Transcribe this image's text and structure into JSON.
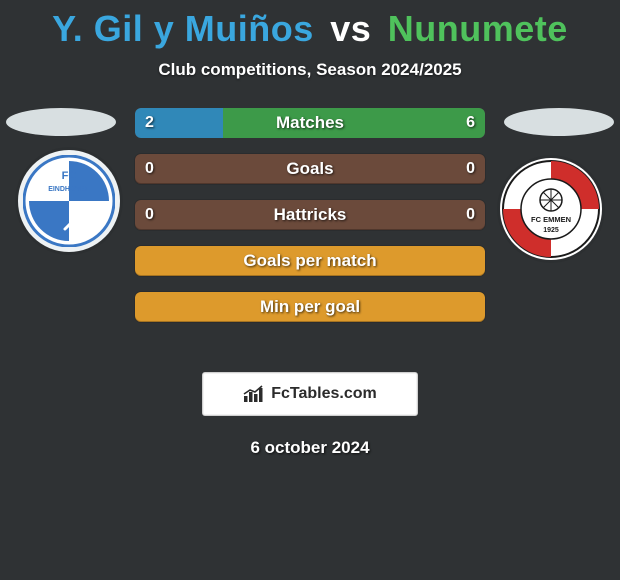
{
  "title": {
    "player1": "Y. Gil y Muiños",
    "sep": "vs",
    "player2": "Nunumete",
    "color1": "#3aa7df",
    "colorSep": "#ffffff",
    "color2": "#4fc25c"
  },
  "subtitle": "Club competitions, Season 2024/2025",
  "ovals": {
    "leftColor": "#d8dfe1",
    "rightColor": "#d8dfe1"
  },
  "bars": [
    {
      "label": "Matches",
      "left": "2",
      "right": "6",
      "lw": 25,
      "rw": 75,
      "colL": "#3088b8",
      "colR": "#3d9a49"
    },
    {
      "label": "Goals",
      "left": "0",
      "right": "0",
      "lw": 0,
      "rw": 0,
      "colL": "#3088b8",
      "colR": "#3d9a49",
      "empty": true,
      "emptyCol": "#6b4a3b"
    },
    {
      "label": "Hattricks",
      "left": "0",
      "right": "0",
      "lw": 0,
      "rw": 0,
      "colL": "#3088b8",
      "colR": "#3d9a49",
      "empty": true,
      "emptyCol": "#6b4a3b"
    },
    {
      "label": "Goals per match",
      "left": "",
      "right": "",
      "lw": 0,
      "rw": 0,
      "full": true,
      "fullCol": "#dd9a2c"
    },
    {
      "label": "Min per goal",
      "left": "",
      "right": "",
      "lw": 0,
      "rw": 0,
      "full": true,
      "fullCol": "#dd9a2c"
    }
  ],
  "brand": "FcTables.com",
  "date": "6 october 2024",
  "crests": {
    "left": {
      "name": "fc-eindhoven-crest",
      "bg": "#ffffff",
      "primary": "#3a77c4",
      "text": "FC",
      "sub": "EINDHOVEN"
    },
    "right": {
      "name": "fc-emmen-crest",
      "bg": "#ffffff",
      "red": "#cf2e2b",
      "text": "FC EMMEN",
      "year": "1925"
    }
  },
  "bg": "#2f3234"
}
